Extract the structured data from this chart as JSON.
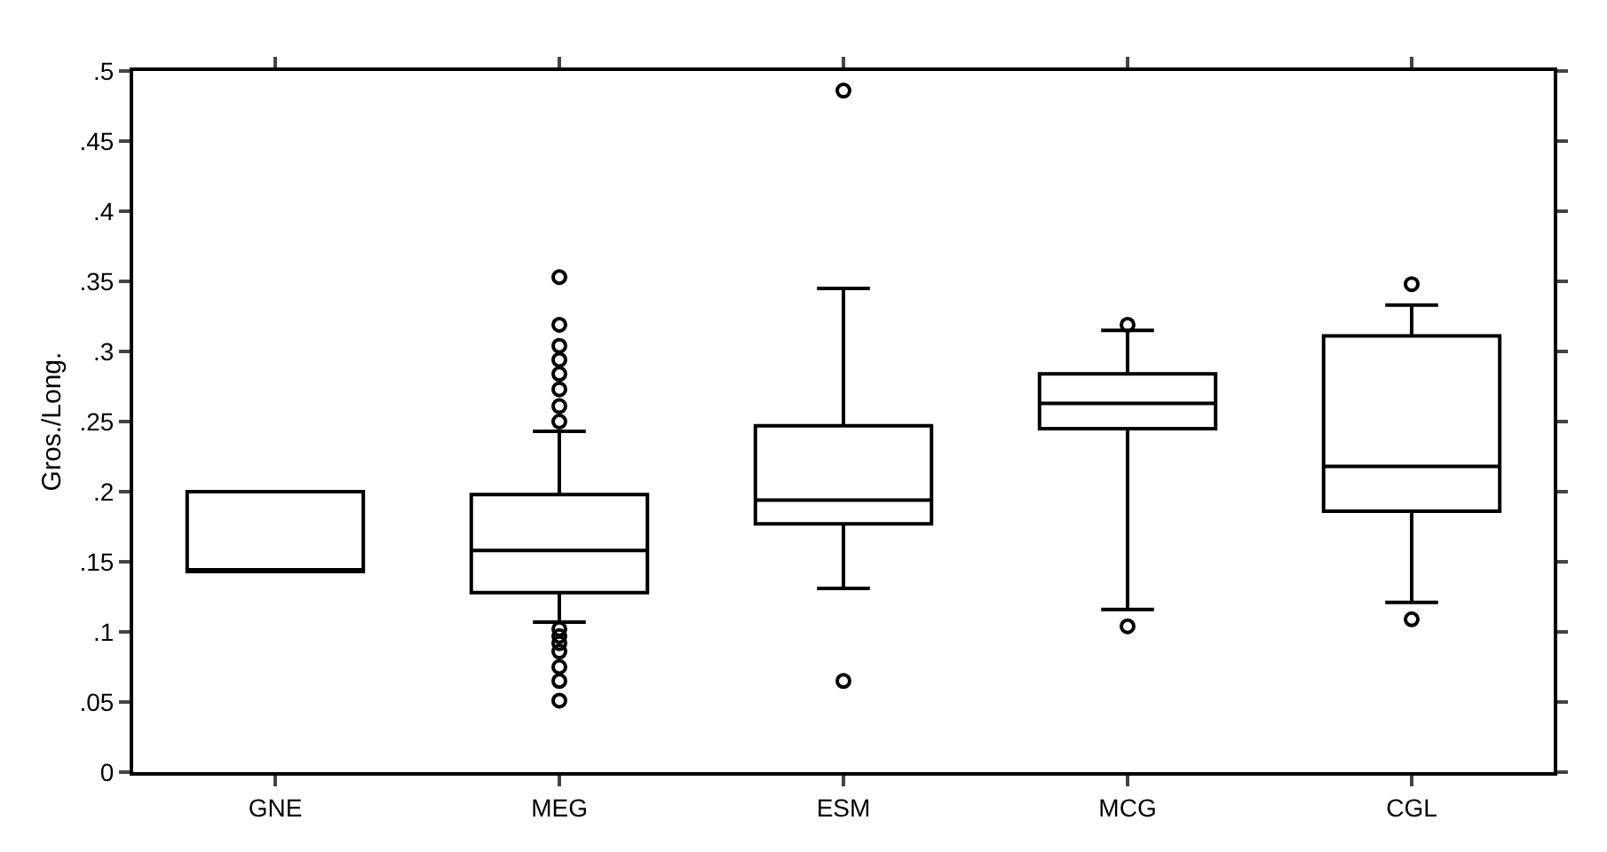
{
  "chart_data": {
    "type": "box",
    "ylabel": "Gros./Long.",
    "categories": [
      "GNE",
      "MEG",
      "ESM",
      "MCG",
      "CGL"
    ],
    "color": "#000000",
    "boxes": [
      {
        "low": 0.143,
        "q1": 0.143,
        "median": 0.143,
        "q3": 0.2,
        "high": 0.2
      },
      {
        "low": 0.107,
        "q1": 0.128,
        "median": 0.158,
        "q3": 0.198,
        "high": 0.243,
        "outliers": [
          0.353,
          0.319,
          0.304,
          0.294,
          0.284,
          0.273,
          0.261,
          0.25,
          0.102,
          0.097,
          0.092,
          0.086,
          0.075,
          0.065,
          0.051
        ]
      },
      {
        "low": 0.131,
        "q1": 0.177,
        "median": 0.194,
        "q3": 0.247,
        "high": 0.345,
        "outliers": [
          0.486,
          0.065
        ]
      },
      {
        "low": 0.116,
        "q1": 0.245,
        "median": 0.263,
        "q3": 0.284,
        "high": 0.315,
        "outliers": [
          0.319,
          0.104
        ]
      },
      {
        "low": 0.121,
        "q1": 0.186,
        "median": 0.218,
        "q3": 0.311,
        "high": 0.333,
        "outliers": [
          0.348,
          0.109
        ]
      }
    ],
    "ylim": [
      0,
      0.5
    ],
    "yticks": [
      0,
      {
        "value": 0.05,
        "label": ".05"
      },
      {
        "value": 0.1,
        "label": ".1"
      },
      {
        "value": 0.15,
        "label": ".15"
      },
      {
        "value": 0.2,
        "label": ".2"
      },
      {
        "value": 0.25,
        "label": ".25"
      },
      {
        "value": 0.3,
        "label": ".3"
      },
      {
        "value": 0.35,
        "label": ".35"
      },
      {
        "value": 0.4,
        "label": ".4"
      },
      {
        "value": 0.45,
        "label": ".45"
      },
      {
        "value": 0.5,
        "label": ".5"
      }
    ],
    "grid": false,
    "marker": "circle"
  }
}
